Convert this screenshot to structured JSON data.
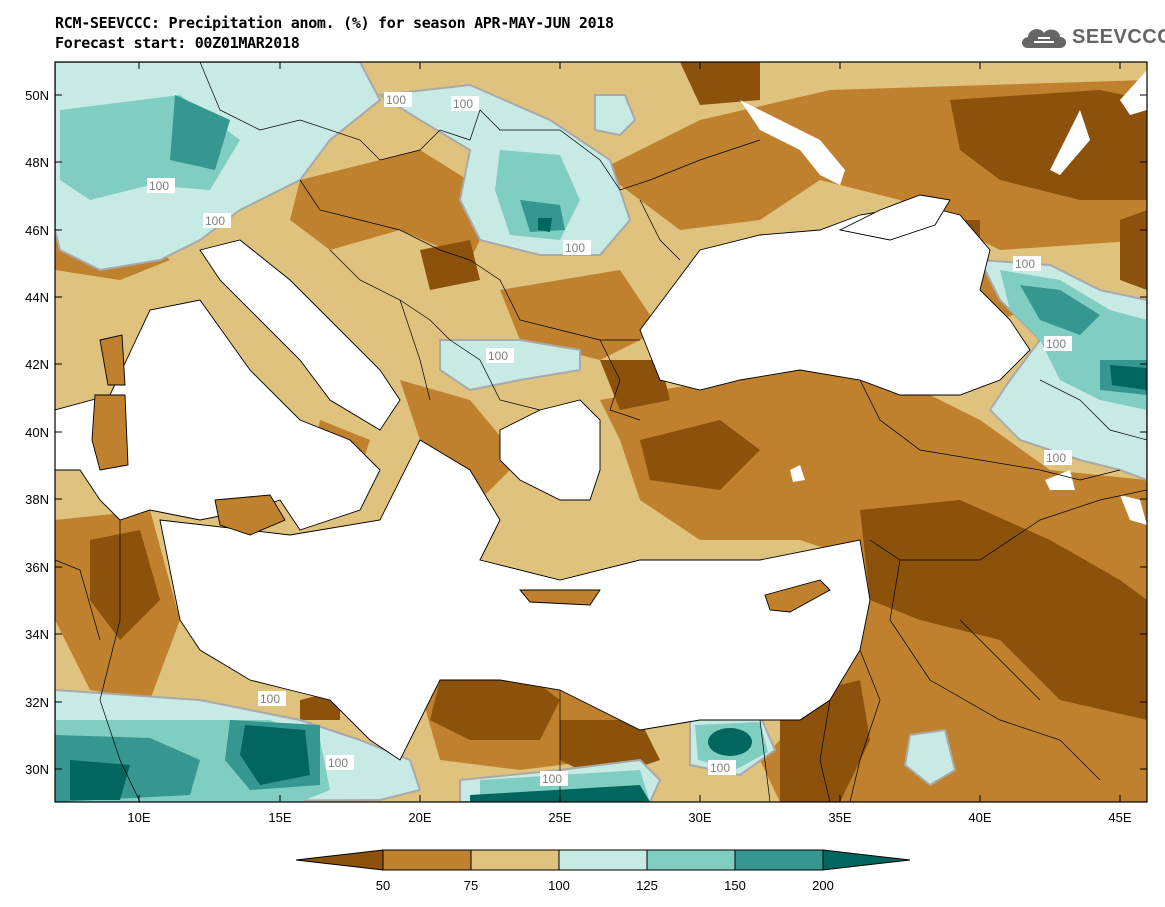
{
  "header": {
    "title_line1": "RCM-SEEVCCC: Precipitation anom. (%) for season APR-MAY-JUN 2018",
    "title_line2": "Forecast start: 00Z01MAR2018",
    "logo_text": "SEEVCCC",
    "logo_icon": "cloud-icon"
  },
  "axes": {
    "lat_labels": [
      "50N",
      "48N",
      "46N",
      "44N",
      "42N",
      "40N",
      "38N",
      "36N",
      "34N",
      "32N",
      "30N"
    ],
    "lon_labels": [
      "10E",
      "15E",
      "20E",
      "25E",
      "30E",
      "35E",
      "40E",
      "45E"
    ]
  },
  "contour_labels": [
    "100",
    "100",
    "100",
    "100",
    "100",
    "100",
    "100",
    "100",
    "100",
    "100",
    "100",
    "100",
    "100"
  ],
  "legend": {
    "ticks": [
      "50",
      "75",
      "100",
      "125",
      "150",
      "200"
    ],
    "colors": [
      "#8c510a",
      "#bf812d",
      "#dfc27d",
      "#c7eae5",
      "#80cdc1",
      "#35978f",
      "#01665e"
    ]
  },
  "colors": {
    "sea": "#ffffff",
    "contour_line": "#a9a9a9"
  }
}
